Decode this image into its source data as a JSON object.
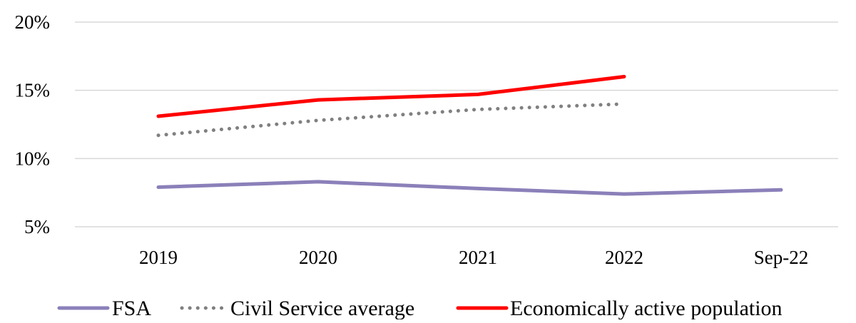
{
  "chart_data": {
    "type": "line",
    "categories": [
      "2019",
      "2020",
      "2021",
      "2022",
      "Sep-22"
    ],
    "y_ticks": [
      "5%",
      "10%",
      "15%",
      "20%"
    ],
    "ylim": [
      5,
      20
    ],
    "y_unit": "%",
    "grid": true,
    "legend_position": "bottom",
    "series": [
      {
        "name": "FSA",
        "values": [
          7.9,
          8.3,
          7.8,
          7.4,
          7.7
        ],
        "color": "#8b80b9",
        "style": "solid"
      },
      {
        "name": "Civil Service average",
        "values": [
          11.7,
          12.8,
          13.6,
          14.0,
          null
        ],
        "color": "#808080",
        "style": "dotted"
      },
      {
        "name": "Economically active population",
        "values": [
          13.1,
          14.3,
          14.7,
          16.0,
          null
        ],
        "color": "#ff0000",
        "style": "solid"
      }
    ]
  }
}
